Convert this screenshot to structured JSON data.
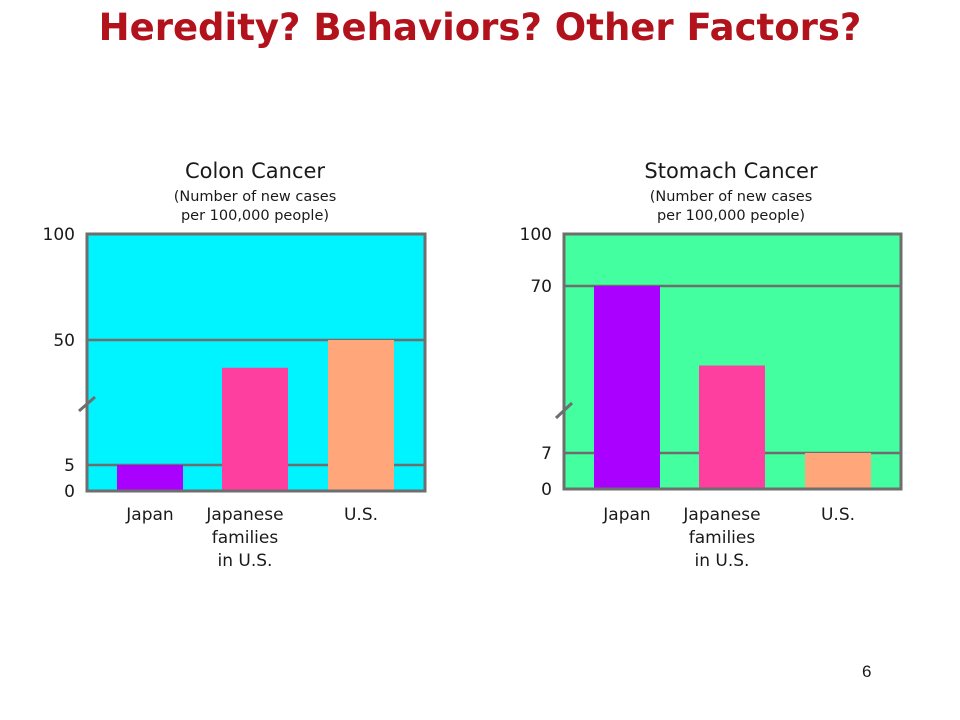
{
  "slide": {
    "title": "Heredity? Behaviors? Other Factors?",
    "page_number": "6"
  },
  "chart_data": [
    {
      "type": "bar",
      "title": "Colon Cancer",
      "subtitle_lines": [
        "(Number of new cases",
        "per 100,000 people)"
      ],
      "categories": [
        "Japan",
        "Japanese families in U.S.",
        "U.S."
      ],
      "category_label_lines": [
        [
          "Japan"
        ],
        [
          "Japanese",
          "families",
          "in U.S."
        ],
        [
          "U.S."
        ]
      ],
      "values": [
        5,
        40,
        50
      ],
      "yticks": [
        0,
        5,
        50,
        100
      ],
      "ylim": [
        0,
        100
      ],
      "axis_break": true,
      "grid": true,
      "background_color": "#00f4ff",
      "bar_colors": [
        "#aa00ff",
        "#ff3f9f",
        "#ffa67a"
      ]
    },
    {
      "type": "bar",
      "title": "Stomach Cancer",
      "subtitle_lines": [
        "(Number of new cases",
        "per 100,000 people)"
      ],
      "categories": [
        "Japan",
        "Japanese families in U.S.",
        "U.S."
      ],
      "category_label_lines": [
        [
          "Japan"
        ],
        [
          "Japanese",
          "families",
          "in U.S."
        ],
        [
          "U.S."
        ]
      ],
      "values": [
        70,
        40,
        7
      ],
      "yticks": [
        0,
        7,
        70,
        100
      ],
      "ylim": [
        0,
        100
      ],
      "axis_break": true,
      "grid": true,
      "background_color": "#44ff9f",
      "bar_colors": [
        "#aa00ff",
        "#ff3f9f",
        "#ffa67a"
      ]
    }
  ]
}
